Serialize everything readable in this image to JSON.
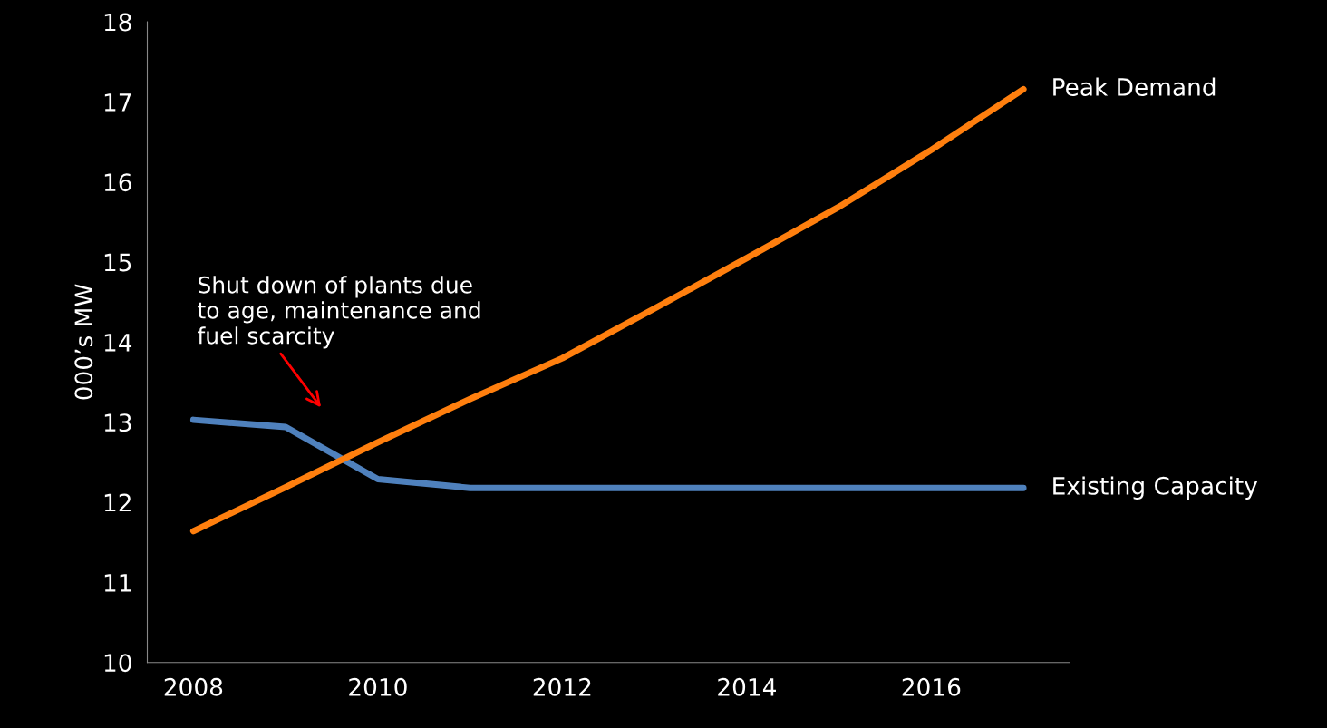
{
  "chart_data": {
    "type": "line",
    "ylabel": "000’s MW",
    "categories": [
      "2008",
      null,
      "2010",
      null,
      "2012",
      null,
      "2014",
      null,
      "2016",
      null
    ],
    "series": [
      {
        "name": "Existing Capacity",
        "color": "#4f81bd",
        "values": [
          13.03,
          12.94,
          12.29,
          12.18,
          12.18,
          12.18,
          12.18,
          12.18,
          12.18,
          12.18
        ]
      },
      {
        "name": "Peak Demand",
        "color": "#ff7f0e",
        "values": [
          11.64,
          12.19,
          12.75,
          13.29,
          13.8,
          14.42,
          15.05,
          15.69,
          16.4,
          17.16
        ]
      }
    ],
    "ylim": [
      10,
      18
    ],
    "yticks": [
      10,
      11,
      12,
      13,
      14,
      15,
      16,
      17,
      18
    ],
    "annotations": [
      "Shut down of plants due to age, maintenance and fuel scarcity"
    ],
    "grid": false,
    "legend": false,
    "marker": "none",
    "line_style": "solid"
  }
}
